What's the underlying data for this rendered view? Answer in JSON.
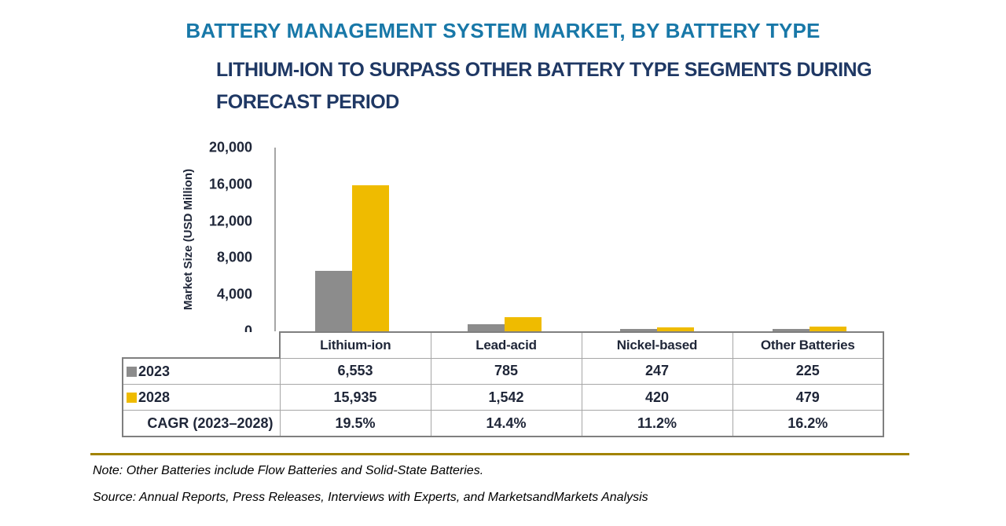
{
  "page": {
    "title": "BATTERY MANAGEMENT SYSTEM MARKET, BY BATTERY TYPE",
    "subtitle": "LITHIUM-ION TO SURPASS OTHER BATTERY TYPE SEGMENTS DURING FORECAST PERIOD",
    "note": "Note: Other Batteries include Flow Batteries and Solid-State Batteries.",
    "source": "Source: Annual Reports, Press Releases, Interviews with Experts, and MarketsandMarkets Analysis"
  },
  "colors": {
    "title_blue": "#1878A8",
    "subtitle_navy": "#1F3864",
    "series_2023_gray": "#8C8C8C",
    "series_2028_yellow": "#EFBB00",
    "gold_rule": "#A28300"
  },
  "chart_data": {
    "type": "bar",
    "title": "BATTERY MANAGEMENT SYSTEM MARKET, BY BATTERY TYPE",
    "subtitle": "LITHIUM-ION TO SURPASS OTHER BATTERY TYPE SEGMENTS DURING FORECAST PERIOD",
    "categories": [
      "Lithium-ion",
      "Lead-acid",
      "Nickel-based",
      "Other Batteries"
    ],
    "series": [
      {
        "name": "2023",
        "color": "#8C8C8C",
        "values": [
          6553,
          785,
          247,
          225
        ],
        "labels": [
          "6,553",
          "785",
          "247",
          "225"
        ]
      },
      {
        "name": "2028",
        "color": "#EFBB00",
        "values": [
          15935,
          1542,
          420,
          479
        ],
        "labels": [
          "15,935",
          "1,542",
          "420",
          "479"
        ]
      }
    ],
    "cagr": {
      "label": "CAGR (2023–2028)",
      "values": [
        "19.5%",
        "14.4%",
        "11.2%",
        "16.2%"
      ]
    },
    "xlabel": "",
    "ylabel": "Market Size (USD Million)",
    "ylim": [
      0,
      20000
    ],
    "y_ticks": [
      "20,000",
      "16,000",
      "12,000",
      "8,000",
      "4,000",
      "0"
    ],
    "grid": false,
    "legend_position": "table-rows-left"
  }
}
